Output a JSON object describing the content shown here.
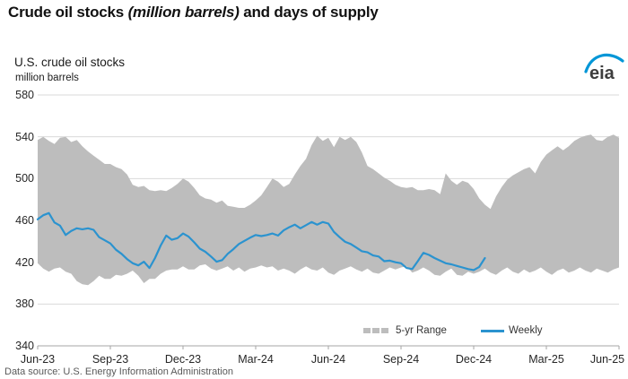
{
  "header": {
    "title_part1": "Crude oil stocks ",
    "title_italic": "(million barrels)",
    "title_part2": " and days of supply"
  },
  "logo": {
    "text": "eia",
    "arc_color": "#0096d7"
  },
  "footer": {
    "source_note": "Data source: U.S. Energy Information Administration"
  },
  "chart_data": {
    "type": "area",
    "title": "U.S. crude oil stocks",
    "ylabel": "million barrels",
    "ylim": [
      340,
      580
    ],
    "y_ticks": [
      580,
      540,
      500,
      460,
      420,
      380,
      340
    ],
    "x_ticks": [
      "Jun-23",
      "Sep-23",
      "Dec-23",
      "Mar-24",
      "Jun-24",
      "Sep-24",
      "Dec-24",
      "Mar-25",
      "Jun-25"
    ],
    "grid": "horizontal-only",
    "legend_position": "bottom-right-inside",
    "colors": {
      "band": "#bdbdbd",
      "line": "#2b93cf",
      "gridline": "#d9d9d9",
      "axis": "#a6a6a6"
    },
    "legend": [
      {
        "name": "5-yr Range",
        "type": "area",
        "color": "#bdbdbd"
      },
      {
        "name": "Weekly",
        "type": "line",
        "color": "#2b93cf"
      }
    ],
    "series": {
      "range_upper": [
        537,
        540,
        536,
        533,
        539,
        540,
        535,
        537,
        531,
        526,
        522,
        518,
        514,
        514,
        511,
        509,
        504,
        494,
        492,
        493,
        489,
        488,
        489,
        488,
        491,
        495,
        500,
        497,
        491,
        484,
        481,
        480,
        477,
        479,
        474,
        473,
        472,
        472,
        475,
        479,
        484,
        492,
        500,
        497,
        492,
        495,
        504,
        512,
        519,
        532,
        541,
        536,
        539,
        530,
        540,
        537,
        540,
        535,
        525,
        512,
        509,
        505,
        501,
        498,
        494,
        492,
        491,
        492,
        489,
        489,
        490,
        489,
        485,
        505,
        498,
        494,
        498,
        496,
        490,
        481,
        475,
        471,
        483,
        492,
        499,
        503,
        506,
        509,
        511,
        505,
        516,
        523,
        527,
        531,
        527,
        531,
        536,
        539,
        541,
        542,
        537,
        536,
        540,
        542,
        539
      ],
      "range_lower": [
        419,
        414,
        411,
        414,
        415,
        411,
        409,
        402,
        399,
        398,
        402,
        407,
        404,
        404,
        408,
        407,
        409,
        412,
        407,
        400,
        404,
        404,
        409,
        412,
        413,
        413,
        416,
        413,
        413,
        417,
        418,
        414,
        412,
        414,
        416,
        412,
        415,
        411,
        414,
        415,
        417,
        415,
        416,
        412,
        414,
        412,
        409,
        413,
        416,
        413,
        412,
        415,
        410,
        408,
        412,
        414,
        416,
        413,
        411,
        414,
        410,
        409,
        412,
        415,
        413,
        415,
        416,
        410,
        412,
        415,
        412,
        408,
        407,
        411,
        414,
        408,
        407,
        411,
        409,
        411,
        414,
        410,
        408,
        412,
        415,
        411,
        409,
        413,
        410,
        412,
        415,
        411,
        408,
        412,
        414,
        410,
        412,
        415,
        412,
        410,
        414,
        412,
        410,
        413,
        415
      ],
      "weekly": [
        461,
        465,
        467,
        458,
        455,
        446,
        450,
        452.5,
        451.5,
        452.5,
        451,
        444,
        441,
        438,
        432,
        428,
        423,
        419,
        417,
        420.5,
        414.5,
        424,
        436,
        445.5,
        441.5,
        443,
        447.5,
        444.5,
        439,
        433,
        430,
        425.5,
        420.5,
        422,
        428,
        432.5,
        437.5,
        440.5,
        443.5,
        446,
        445,
        446,
        447.5,
        445.5,
        450.5,
        453.5,
        456,
        452.5,
        455.5,
        458.5,
        456,
        458.5,
        457,
        449,
        444,
        439.5,
        437.5,
        434,
        430.5,
        429.5,
        426.5,
        425.5,
        421,
        421.5,
        420,
        419,
        414.5,
        413.5,
        421,
        429,
        427,
        424,
        421.5,
        419,
        418,
        416.5,
        415,
        413.5,
        412.5,
        415.5,
        424
      ]
    }
  }
}
